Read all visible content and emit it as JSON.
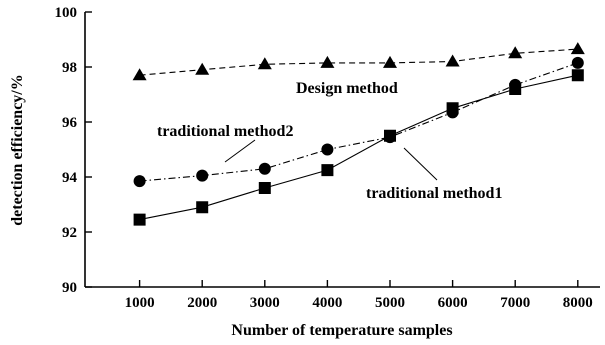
{
  "chart_data": {
    "type": "line",
    "title": "",
    "xlabel": "Number of temperature samples",
    "ylabel": "detection efficiency/%",
    "xlim": [
      0,
      8000
    ],
    "ylim": [
      90,
      100
    ],
    "xticks": [
      "1000",
      "2000",
      "3000",
      "4000",
      "5000",
      "6000",
      "7000",
      "8000"
    ],
    "yticks": [
      "90",
      "92",
      "94",
      "96",
      "98",
      "100"
    ],
    "grid": false,
    "legend": "inline annotations",
    "series": [
      {
        "name": "Design method",
        "marker": "triangle",
        "line_style": "dashed",
        "x": [
          1000,
          2000,
          3000,
          4000,
          5000,
          6000,
          7000,
          8000
        ],
        "values": [
          97.7,
          97.9,
          98.1,
          98.15,
          98.15,
          98.2,
          98.5,
          98.65
        ]
      },
      {
        "name": "traditional method2",
        "marker": "circle",
        "line_style": "dashdot",
        "x": [
          1000,
          2000,
          3000,
          4000,
          5000,
          6000,
          7000,
          8000
        ],
        "values": [
          93.85,
          94.05,
          94.3,
          95.0,
          95.45,
          96.35,
          97.35,
          98.15
        ]
      },
      {
        "name": "traditional method1",
        "marker": "square",
        "line_style": "solid",
        "x": [
          1000,
          2000,
          3000,
          4000,
          5000,
          6000,
          7000,
          8000
        ],
        "values": [
          92.45,
          92.9,
          93.6,
          94.25,
          95.5,
          96.5,
          97.2,
          97.7
        ]
      }
    ]
  }
}
